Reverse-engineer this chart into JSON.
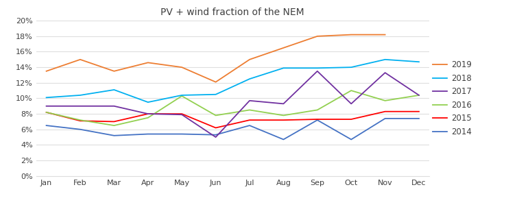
{
  "title": "PV + wind fraction of the NEM",
  "months": [
    "Jan",
    "Feb",
    "Mar",
    "Apr",
    "May",
    "Jun",
    "Jul",
    "Aug",
    "Sep",
    "Oct",
    "Nov",
    "Dec"
  ],
  "series": {
    "2019": {
      "values": [
        0.135,
        0.15,
        0.135,
        0.146,
        0.14,
        0.121,
        0.15,
        0.165,
        0.18,
        0.182,
        0.182,
        null
      ],
      "color": "#ED7D31",
      "zorder": 6
    },
    "2018": {
      "values": [
        0.101,
        0.104,
        0.111,
        0.095,
        0.104,
        0.105,
        0.125,
        0.139,
        0.139,
        0.14,
        0.15,
        0.147
      ],
      "color": "#00B0F0",
      "zorder": 5
    },
    "2017": {
      "values": [
        0.09,
        0.09,
        0.09,
        0.08,
        0.079,
        0.05,
        0.097,
        0.093,
        0.135,
        0.093,
        0.133,
        0.104
      ],
      "color": "#7030A0",
      "zorder": 4
    },
    "2016": {
      "values": [
        0.082,
        0.072,
        0.065,
        0.075,
        0.103,
        0.078,
        0.085,
        0.078,
        0.085,
        0.11,
        0.097,
        0.104
      ],
      "color": "#92D050",
      "zorder": 3
    },
    "2015": {
      "values": [
        0.082,
        0.071,
        0.07,
        0.08,
        0.08,
        0.062,
        0.072,
        0.072,
        0.073,
        0.073,
        0.083,
        0.083
      ],
      "color": "#FF0000",
      "zorder": 2
    },
    "2014": {
      "values": [
        0.065,
        0.06,
        0.052,
        0.054,
        0.054,
        0.053,
        0.065,
        0.047,
        0.072,
        0.047,
        0.074,
        0.074
      ],
      "color": "#4472C4",
      "zorder": 1
    }
  },
  "ylim": [
    0,
    0.2
  ],
  "yticks": [
    0.0,
    0.02,
    0.04,
    0.06,
    0.08,
    0.1,
    0.12,
    0.14,
    0.16,
    0.18,
    0.2
  ],
  "legend_order": [
    "2019",
    "2018",
    "2017",
    "2016",
    "2015",
    "2014"
  ],
  "bg_color": "#FFFFFF",
  "grid_color": "#DEDEDE",
  "title_fontsize": 10,
  "tick_fontsize": 8,
  "legend_fontsize": 8.5
}
